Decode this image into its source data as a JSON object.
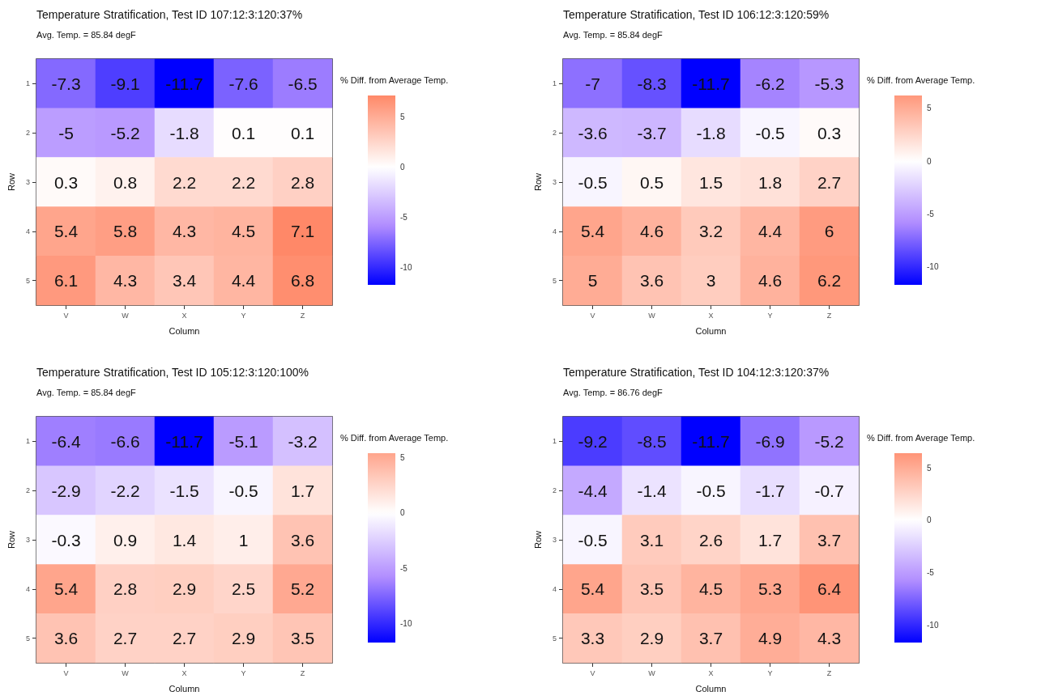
{
  "chart_data": [
    {
      "type": "heatmap",
      "title": "Temperature Stratification, Test ID 107:12:3:120:37%",
      "subtitle": "Avg. Temp. = 85.84 degF",
      "xlabel": "Column",
      "ylabel": "Row",
      "clabel": "% Diff. from Average Temp.",
      "categories": [
        "V",
        "W",
        "X",
        "Y",
        "Z"
      ],
      "y_categories": [
        "1",
        "2",
        "3",
        "4",
        "5"
      ],
      "cells": [
        [
          -7.3,
          -9.1,
          -11.7,
          -7.6,
          -6.5
        ],
        [
          -5,
          -5.2,
          -1.8,
          0.1,
          0.1
        ],
        [
          0.3,
          0.8,
          2.2,
          2.2,
          2.8
        ],
        [
          5.4,
          5.8,
          4.3,
          4.5,
          7.1
        ],
        [
          6.1,
          4.3,
          3.4,
          4.4,
          6.8
        ]
      ],
      "clim": [
        -11.7,
        7.1
      ],
      "cticks": [
        -10,
        -5,
        0,
        5
      ],
      "data_labels": true
    },
    {
      "type": "heatmap",
      "title": "Temperature Stratification, Test ID 106:12:3:120:59%",
      "subtitle": "Avg. Temp. = 85.84 degF",
      "xlabel": "Column",
      "ylabel": "Row",
      "clabel": "% Diff. from Average Temp.",
      "categories": [
        "V",
        "W",
        "X",
        "Y",
        "Z"
      ],
      "y_categories": [
        "1",
        "2",
        "3",
        "4",
        "5"
      ],
      "cells": [
        [
          -7,
          -8.3,
          -11.7,
          -6.2,
          -5.3
        ],
        [
          -3.6,
          -3.7,
          -1.8,
          -0.5,
          0.3
        ],
        [
          -0.5,
          0.5,
          1.5,
          1.8,
          2.7
        ],
        [
          5.4,
          4.6,
          3.2,
          4.4,
          6
        ],
        [
          5,
          3.6,
          3,
          4.6,
          6.2
        ]
      ],
      "clim": [
        -11.7,
        6.2
      ],
      "cticks": [
        -10,
        -5,
        0,
        5
      ],
      "data_labels": true
    },
    {
      "type": "heatmap",
      "title": "Temperature Stratification, Test ID 105:12:3:120:100%",
      "subtitle": "Avg. Temp. = 85.84 degF",
      "xlabel": "Column",
      "ylabel": "Row",
      "clabel": "% Diff. from Average Temp.",
      "categories": [
        "V",
        "W",
        "X",
        "Y",
        "Z"
      ],
      "y_categories": [
        "1",
        "2",
        "3",
        "4",
        "5"
      ],
      "cells": [
        [
          -6.4,
          -6.6,
          -11.7,
          -5.1,
          -3.2
        ],
        [
          -2.9,
          -2.2,
          -1.5,
          -0.5,
          1.7
        ],
        [
          -0.3,
          0.9,
          1.4,
          1,
          3.6
        ],
        [
          5.4,
          2.8,
          2.9,
          2.5,
          5.2
        ],
        [
          3.6,
          2.7,
          2.7,
          2.9,
          3.5
        ]
      ],
      "clim": [
        -11.7,
        5.4
      ],
      "cticks": [
        -10,
        -5,
        0,
        5
      ],
      "data_labels": true
    },
    {
      "type": "heatmap",
      "title": "Temperature Stratification, Test ID 104:12:3:120:37%",
      "subtitle": "Avg. Temp. = 86.76 degF",
      "xlabel": "Column",
      "ylabel": "Row",
      "clabel": "% Diff. from Average Temp.",
      "categories": [
        "V",
        "W",
        "X",
        "Y",
        "Z"
      ],
      "y_categories": [
        "1",
        "2",
        "3",
        "4",
        "5"
      ],
      "cells": [
        [
          -9.2,
          -8.5,
          -11.7,
          -6.9,
          -5.2
        ],
        [
          -4.4,
          -1.4,
          -0.5,
          -1.7,
          -0.7
        ],
        [
          -0.5,
          3.1,
          2.6,
          1.7,
          3.7
        ],
        [
          5.4,
          3.5,
          4.5,
          5.3,
          6.4
        ],
        [
          3.3,
          2.9,
          3.7,
          4.9,
          4.3
        ]
      ],
      "clim": [
        -11.7,
        6.4
      ],
      "cticks": [
        -10,
        -5,
        0,
        5
      ],
      "data_labels": true
    }
  ]
}
